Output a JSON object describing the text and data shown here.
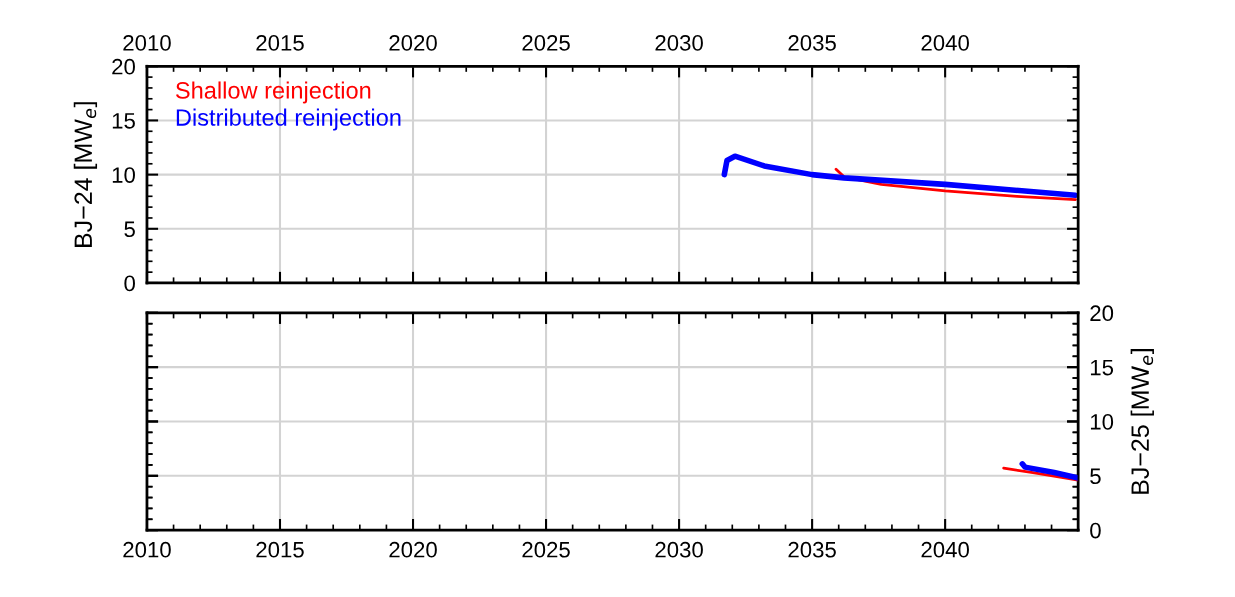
{
  "chart_data": [
    {
      "type": "line",
      "ylabel": "BJ−24 [MW$_{e}$]",
      "xlim": [
        2010,
        2045
      ],
      "xticks": [
        2010,
        2015,
        2020,
        2025,
        2030,
        2035,
        2040
      ],
      "ylim": [
        0,
        20
      ],
      "yticks": [
        0,
        5,
        10,
        15,
        20
      ],
      "grid": true,
      "legend": "top left",
      "series": [
        {
          "name": "Shallow reinjection",
          "color": "#ff0000",
          "x": [
            2035.9,
            2036.2,
            2037.6,
            2040,
            2042.7,
            2044.9
          ],
          "values": [
            10.5,
            9.8,
            9.1,
            8.5,
            8.0,
            7.7
          ]
        },
        {
          "name": "Distributed reinjection",
          "color": "#0000ff",
          "x": [
            2031.7,
            2031.8,
            2032.1,
            2033.2,
            2035,
            2036.2,
            2040,
            2044.9
          ],
          "values": [
            10.0,
            11.3,
            11.7,
            10.8,
            10.0,
            9.7,
            9.1,
            8.1
          ]
        }
      ]
    },
    {
      "type": "line",
      "y2label": "BJ−25 [MW$_{e}$]",
      "xlim": [
        2010,
        2045
      ],
      "xticks": [
        2010,
        2015,
        2020,
        2025,
        2030,
        2035,
        2040
      ],
      "y2lim": [
        0,
        20
      ],
      "y2ticks": [
        0,
        5,
        10,
        15,
        20
      ],
      "grid": true,
      "series": [
        {
          "color": "#ff0000",
          "axis": "y2",
          "x": [
            2042.2,
            2043.3,
            2045.0
          ],
          "values": [
            5.7,
            5.3,
            4.6
          ]
        },
        {
          "color": "#0000ff",
          "axis": "y2",
          "x": [
            2042.9,
            2043.0,
            2044.1,
            2045.0
          ],
          "values": [
            6.1,
            5.8,
            5.3,
            4.8
          ]
        }
      ]
    }
  ]
}
